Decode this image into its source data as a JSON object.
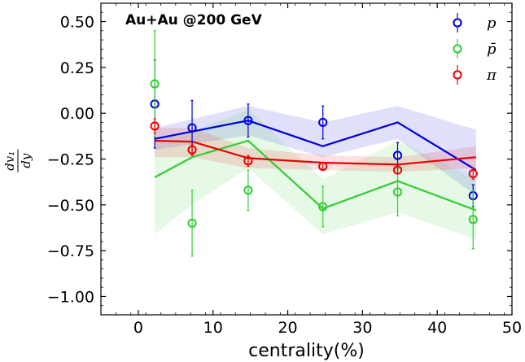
{
  "chart_data": {
    "type": "line",
    "annotation": "Au+Au @200 GeV",
    "xlabel": "centrality(%)",
    "ylabel": "dv₁/dy",
    "ylabel_num": "dv₁",
    "ylabel_den": "dy",
    "xlim": [
      -5,
      50
    ],
    "ylim": [
      -1.1,
      0.6
    ],
    "xticks": [
      0,
      10,
      20,
      30,
      40,
      50
    ],
    "xtick_labels": [
      "0",
      "10",
      "20",
      "30",
      "40",
      "50"
    ],
    "yticks": [
      0.5,
      0.25,
      0,
      -0.25,
      -0.5,
      -0.75,
      -1.0
    ],
    "ytick_labels": [
      "0.50",
      "0.25",
      "0.00",
      "−0.25",
      "−0.50",
      "−0.75",
      "−1.00"
    ],
    "legend_position": "top-right",
    "series": [
      {
        "name": "p",
        "color": "#0000dd",
        "points": [
          {
            "x": 2.2,
            "y": 0.05,
            "err": 0.24
          },
          {
            "x": 7.2,
            "y": -0.08,
            "err": 0.15
          },
          {
            "x": 14.7,
            "y": -0.04,
            "err": 0.09
          },
          {
            "x": 24.7,
            "y": -0.05,
            "err": 0.09
          },
          {
            "x": 34.7,
            "y": -0.23,
            "err": 0.07
          },
          {
            "x": 44.8,
            "y": -0.45,
            "err": 0.06
          }
        ],
        "line": [
          {
            "x": 2.2,
            "y": -0.14
          },
          {
            "x": 14.7,
            "y": -0.04
          },
          {
            "x": 24.7,
            "y": -0.18
          },
          {
            "x": 34.7,
            "y": -0.05
          },
          {
            "x": 45.2,
            "y": -0.31
          }
        ],
        "band": [
          {
            "x": 2.2,
            "lo": -0.2,
            "hi": -0.08
          },
          {
            "x": 14.7,
            "lo": -0.12,
            "hi": 0.04
          },
          {
            "x": 24.7,
            "lo": -0.24,
            "hi": -0.05
          },
          {
            "x": 34.7,
            "lo": -0.14,
            "hi": 0.04
          },
          {
            "x": 45.2,
            "lo": -0.45,
            "hi": -0.09
          }
        ]
      },
      {
        "name": "p̄",
        "color": "#33cc33",
        "points": [
          {
            "x": 2.2,
            "y": 0.16,
            "err": 0.29
          },
          {
            "x": 7.2,
            "y": -0.6,
            "err": 0.18
          },
          {
            "x": 14.7,
            "y": -0.42,
            "err": 0.11
          },
          {
            "x": 24.7,
            "y": -0.51,
            "err": 0.11
          },
          {
            "x": 34.7,
            "y": -0.43,
            "err": 0.13
          },
          {
            "x": 44.8,
            "y": -0.58,
            "err": 0.16
          }
        ],
        "line": [
          {
            "x": 2.2,
            "y": -0.35
          },
          {
            "x": 7.2,
            "y": -0.24
          },
          {
            "x": 14.7,
            "y": -0.15
          },
          {
            "x": 24.7,
            "y": -0.52
          },
          {
            "x": 34.7,
            "y": -0.37
          },
          {
            "x": 45.2,
            "y": -0.53
          }
        ],
        "band": [
          {
            "x": 2.2,
            "lo": -0.66,
            "hi": -0.13
          },
          {
            "x": 7.2,
            "lo": -0.5,
            "hi": -0.1
          },
          {
            "x": 14.7,
            "lo": -0.3,
            "hi": 0.02
          },
          {
            "x": 24.7,
            "lo": -0.66,
            "hi": -0.36
          },
          {
            "x": 34.7,
            "lo": -0.54,
            "hi": -0.15
          },
          {
            "x": 45.2,
            "lo": -0.69,
            "hi": -0.36
          }
        ]
      },
      {
        "name": "π",
        "color": "#ee0000",
        "points": [
          {
            "x": 2.2,
            "y": -0.07,
            "err": 0.04
          },
          {
            "x": 7.2,
            "y": -0.2,
            "err": 0.03
          },
          {
            "x": 14.7,
            "y": -0.26,
            "err": 0.03
          },
          {
            "x": 24.7,
            "y": -0.29,
            "err": 0.02
          },
          {
            "x": 34.7,
            "y": -0.31,
            "err": 0.02
          },
          {
            "x": 44.8,
            "y": -0.33,
            "err": 0.03
          }
        ],
        "line": [
          {
            "x": 2.2,
            "y": -0.15
          },
          {
            "x": 7.2,
            "y": -0.155
          },
          {
            "x": 14.7,
            "y": -0.245
          },
          {
            "x": 24.7,
            "y": -0.27
          },
          {
            "x": 34.7,
            "y": -0.28
          },
          {
            "x": 45.2,
            "y": -0.24
          }
        ],
        "band": [
          {
            "x": 2.2,
            "lo": -0.24,
            "hi": -0.08
          },
          {
            "x": 7.2,
            "lo": -0.24,
            "hi": -0.08
          },
          {
            "x": 14.7,
            "lo": -0.3,
            "hi": -0.19
          },
          {
            "x": 24.7,
            "lo": -0.31,
            "hi": -0.23
          },
          {
            "x": 34.7,
            "lo": -0.32,
            "hi": -0.24
          },
          {
            "x": 45.2,
            "lo": -0.3,
            "hi": -0.18
          }
        ]
      }
    ]
  }
}
